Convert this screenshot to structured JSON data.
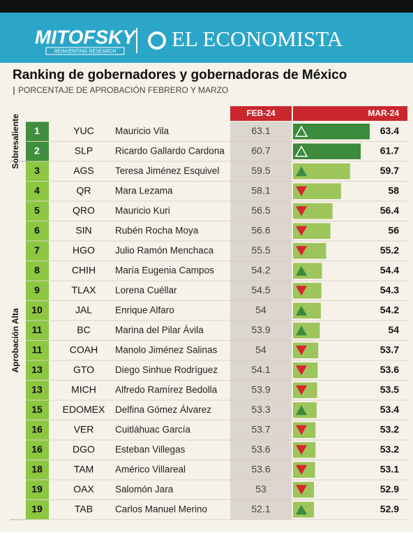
{
  "header": {
    "brand": "MITOFSKY",
    "tagline": "REINVENTING RESEARCH",
    "partner": "EL ECONOMISTA"
  },
  "title": "Ranking de gobernadores y gobernadoras de México",
  "subtitle": "PORCENTAJE DE APROBACIÓN FEBRERO Y MARZO",
  "columns": {
    "feb": "FEB-24",
    "mar": "MAR-24"
  },
  "groups": [
    {
      "label": "Sobresaliente",
      "rows": 2
    },
    {
      "label": "Aprobación Alta",
      "rows": 18
    }
  ],
  "rows": [
    [
      "1",
      "YUC",
      "Mauricio Vila",
      63.1,
      63.4,
      "up"
    ],
    [
      "2",
      "SLP",
      "Ricardo Gallardo Cardona",
      60.7,
      61.7,
      "up"
    ],
    [
      "3",
      "AGS",
      "Teresa Jiménez Esquivel",
      59.5,
      59.7,
      "up"
    ],
    [
      "4",
      "QR",
      "Mara Lezama",
      58.1,
      58.0,
      "down"
    ],
    [
      "5",
      "QRO",
      "Mauricio Kuri",
      56.5,
      56.4,
      "down"
    ],
    [
      "6",
      "SIN",
      "Rubén Rocha Moya",
      56.6,
      56.0,
      "down"
    ],
    [
      "7",
      "HGO",
      "Julio Ramón Menchaca",
      55.5,
      55.2,
      "down"
    ],
    [
      "8",
      "CHIH",
      "María Eugenia Campos",
      54.2,
      54.4,
      "up"
    ],
    [
      "9",
      "TLAX",
      "Lorena Cuéllar",
      54.5,
      54.3,
      "down"
    ],
    [
      "10",
      "JAL",
      "Enrique Alfaro",
      54.0,
      54.2,
      "up"
    ],
    [
      "11",
      "BC",
      "Marina del Pilar Ávila",
      53.9,
      54.0,
      "up"
    ],
    [
      "11",
      "COAH",
      "Manolo Jiménez Salinas",
      54.0,
      53.7,
      "down"
    ],
    [
      "13",
      "GTO",
      "Diego Sinhue Rodríguez",
      54.1,
      53.6,
      "down"
    ],
    [
      "13",
      "MICH",
      "Alfredo Ramírez Bedolla",
      53.9,
      53.5,
      "down"
    ],
    [
      "15",
      "EDOMEX",
      "Delfina Gómez Álvarez",
      53.3,
      53.4,
      "up"
    ],
    [
      "16",
      "VER",
      "Cuitláhuac García",
      53.7,
      53.2,
      "down"
    ],
    [
      "16",
      "DGO",
      "Esteban Villegas",
      53.6,
      53.2,
      "down"
    ],
    [
      "18",
      "TAM",
      "Américo Villareal",
      53.6,
      53.1,
      "down"
    ],
    [
      "19",
      "OAX",
      "Salomón Jara",
      53.0,
      52.9,
      "down"
    ],
    [
      "19",
      "TAB",
      "Carlos Manuel Merino",
      52.1,
      52.9,
      "up"
    ]
  ]
}
